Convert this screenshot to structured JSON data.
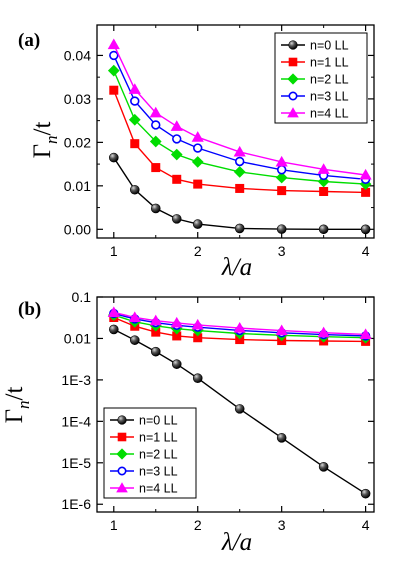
{
  "chart_data": [
    {
      "type": "line",
      "panel_label": "(a)",
      "xlabel": "λ/a",
      "ylabel": "Γn/t",
      "xlim": [
        0.8,
        4.1
      ],
      "ylim": [
        -0.002,
        0.047
      ],
      "yscale": "linear",
      "x_ticks": [
        1,
        2,
        3,
        4
      ],
      "x_tick_labels": [
        "1",
        "2",
        "3",
        "4"
      ],
      "y_ticks": [
        0.0,
        0.01,
        0.02,
        0.03,
        0.04
      ],
      "y_tick_labels": [
        "0.00",
        "0.01",
        "0.02",
        "0.03",
        "0.04"
      ],
      "legend_position": "top-right",
      "x": [
        1,
        1.25,
        1.5,
        1.75,
        2,
        2.5,
        3,
        3.5,
        4
      ],
      "series": [
        {
          "name": "n=0 LL",
          "color": "#000000",
          "marker": "sphere",
          "values": [
            0.0165,
            0.0091,
            0.0048,
            0.0024,
            0.0012,
            0.0002,
            4e-05,
            8e-06,
            2e-06
          ]
        },
        {
          "name": "n=1 LL",
          "color": "#ff0000",
          "marker": "square",
          "values": [
            0.032,
            0.0197,
            0.0142,
            0.0115,
            0.0104,
            0.0094,
            0.0089,
            0.0087,
            0.0085
          ]
        },
        {
          "name": "n=2 LL",
          "color": "#00dd00",
          "marker": "diamond",
          "values": [
            0.0365,
            0.0252,
            0.0202,
            0.0172,
            0.0155,
            0.0132,
            0.0119,
            0.011,
            0.0104
          ]
        },
        {
          "name": "n=3 LL",
          "color": "#0000ff",
          "marker": "circle",
          "values": [
            0.04,
            0.0295,
            0.024,
            0.0208,
            0.0187,
            0.0156,
            0.0137,
            0.0124,
            0.0115
          ]
        },
        {
          "name": "n=4 LL",
          "color": "#ff00ff",
          "marker": "triangle",
          "values": [
            0.0425,
            0.0322,
            0.0268,
            0.0237,
            0.0212,
            0.0178,
            0.0155,
            0.0138,
            0.0125
          ]
        }
      ]
    },
    {
      "type": "line",
      "panel_label": "(b)",
      "xlabel": "λ/a",
      "ylabel": "Γn/t",
      "xlim": [
        0.8,
        4.1
      ],
      "ylim": [
        6.5e-07,
        0.1
      ],
      "yscale": "log",
      "x_ticks": [
        1,
        2,
        3,
        4
      ],
      "x_tick_labels": [
        "1",
        "2",
        "3",
        "4"
      ],
      "y_ticks": [
        0.1,
        0.01,
        0.001,
        0.0001,
        1e-05,
        1e-06
      ],
      "y_tick_labels": [
        "0.1",
        "0.01",
        "1E-3",
        "1E-4",
        "1E-5",
        "1E-6"
      ],
      "legend_position": "bottom-left",
      "x": [
        1,
        1.25,
        1.5,
        1.75,
        2,
        2.5,
        3,
        3.5,
        4
      ],
      "series": [
        {
          "name": "n=0 LL",
          "color": "#000000",
          "marker": "sphere",
          "values": [
            0.0165,
            0.0091,
            0.0048,
            0.0024,
            0.0011,
            0.0002,
            4e-05,
            8e-06,
            1.8e-06
          ]
        },
        {
          "name": "n=1 LL",
          "color": "#ff0000",
          "marker": "square",
          "values": [
            0.032,
            0.0197,
            0.0142,
            0.0115,
            0.0104,
            0.0094,
            0.0089,
            0.0087,
            0.0085
          ]
        },
        {
          "name": "n=2 LL",
          "color": "#00dd00",
          "marker": "diamond",
          "values": [
            0.0365,
            0.0252,
            0.0202,
            0.0172,
            0.0155,
            0.0132,
            0.0119,
            0.011,
            0.0104
          ]
        },
        {
          "name": "n=3 LL",
          "color": "#0000ff",
          "marker": "circle",
          "values": [
            0.04,
            0.0295,
            0.024,
            0.0208,
            0.0187,
            0.0156,
            0.0137,
            0.0124,
            0.0115
          ]
        },
        {
          "name": "n=4 LL",
          "color": "#ff00ff",
          "marker": "triangle",
          "values": [
            0.0425,
            0.0322,
            0.0268,
            0.0237,
            0.0212,
            0.0178,
            0.0155,
            0.0138,
            0.0125
          ]
        }
      ]
    }
  ]
}
